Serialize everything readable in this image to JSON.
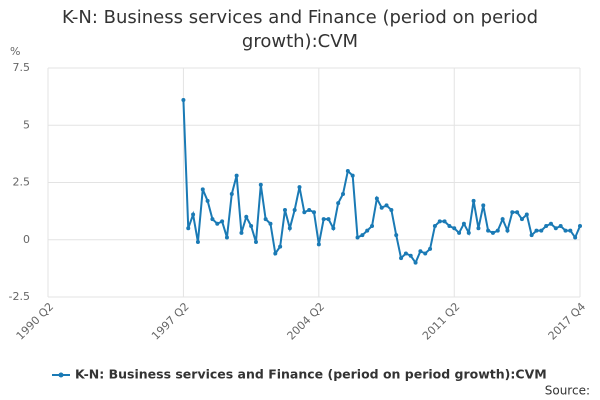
{
  "chart_data": {
    "type": "line",
    "title": "K-N: Business services and Finance (period on period growth):CVM",
    "y_label": "%",
    "source": "Source:",
    "categories": [
      "1990 Q2",
      null,
      null,
      null,
      null,
      null,
      null,
      null,
      null,
      null,
      null,
      null,
      null,
      null,
      null,
      null,
      null,
      null,
      null,
      null,
      null,
      null,
      null,
      null,
      null,
      null,
      null,
      null,
      "1997 Q2",
      null,
      null,
      null,
      null,
      null,
      null,
      null,
      null,
      null,
      null,
      null,
      null,
      null,
      null,
      null,
      null,
      null,
      null,
      null,
      null,
      null,
      null,
      null,
      null,
      null,
      null,
      null,
      "2004 Q2",
      null,
      null,
      null,
      null,
      null,
      null,
      null,
      null,
      null,
      null,
      null,
      null,
      null,
      null,
      null,
      null,
      null,
      null,
      null,
      null,
      null,
      null,
      null,
      null,
      null,
      null,
      null,
      "2011 Q2",
      null,
      null,
      null,
      null,
      null,
      null,
      null,
      null,
      null,
      null,
      null,
      null,
      null,
      null,
      null,
      null,
      null,
      null,
      null,
      null,
      null,
      null,
      null,
      null,
      null,
      "2017 Q4"
    ],
    "series": [
      {
        "name": "K-N: Business services and Finance (period on period growth):CVM",
        "color": "#1a7ab5",
        "values": [
          null,
          null,
          null,
          null,
          null,
          null,
          null,
          null,
          null,
          null,
          null,
          null,
          null,
          null,
          null,
          null,
          null,
          null,
          null,
          null,
          null,
          null,
          null,
          null,
          null,
          null,
          null,
          null,
          6.1,
          0.5,
          1.1,
          -0.1,
          2.2,
          1.7,
          0.9,
          0.7,
          0.8,
          0.1,
          2.0,
          2.8,
          0.3,
          1.0,
          0.6,
          -0.1,
          2.4,
          0.9,
          0.7,
          -0.6,
          -0.3,
          1.3,
          0.5,
          1.3,
          2.3,
          1.2,
          1.3,
          1.2,
          -0.2,
          0.9,
          0.9,
          0.5,
          1.6,
          2.0,
          3.0,
          2.8,
          0.1,
          0.2,
          0.4,
          0.6,
          1.8,
          1.4,
          1.5,
          1.3,
          0.2,
          -0.8,
          -0.6,
          -0.7,
          -1.0,
          -0.5,
          -0.6,
          -0.4,
          0.6,
          0.8,
          0.8,
          0.6,
          0.5,
          0.3,
          0.7,
          0.3,
          1.7,
          0.5,
          1.5,
          0.4,
          0.3,
          0.4,
          0.9,
          0.4,
          1.2,
          1.2,
          0.9,
          1.1,
          0.2,
          0.4,
          0.4,
          0.6,
          0.7,
          0.5,
          0.6,
          0.4,
          0.4,
          0.1,
          0.6
        ]
      }
    ],
    "ylim": [
      -2.5,
      7.5
    ],
    "yticks": [
      -2.5,
      0,
      2.5,
      5,
      7.5
    ],
    "grid": true
  }
}
